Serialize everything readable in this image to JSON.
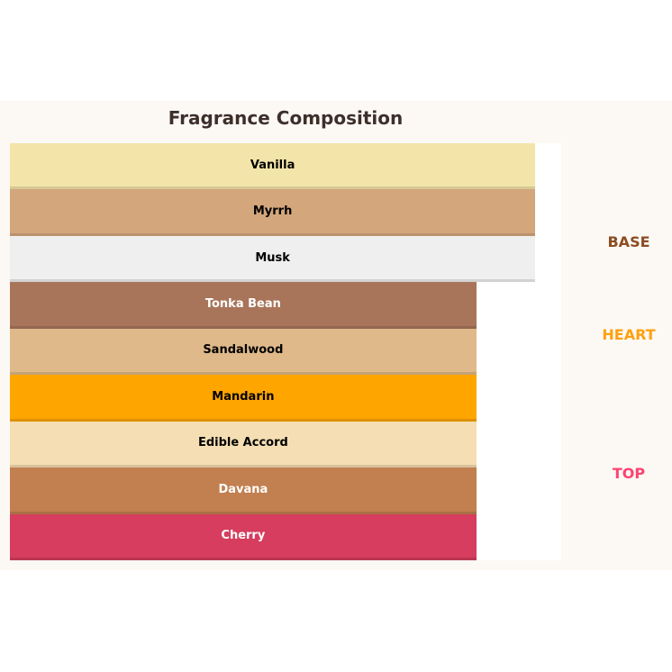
{
  "chart_data": {
    "type": "bar",
    "orientation": "horizontal-stacked-layers",
    "title": "Fragrance Composition",
    "grid": false,
    "axes_visible": false,
    "value_unit": "percent of plot width",
    "bars": [
      {
        "label": "Vanilla",
        "group": "BASE",
        "value": 95.3,
        "color": "#f3e4a9",
        "text_color": "#000000"
      },
      {
        "label": "Myrrh",
        "group": "BASE",
        "value": 95.3,
        "color": "#d3a67b",
        "text_color": "#000000"
      },
      {
        "label": "Musk",
        "group": "BASE",
        "value": 95.3,
        "color": "#efefef",
        "text_color": "#000000"
      },
      {
        "label": "Tonka Bean",
        "group": "HEART",
        "value": 84.6,
        "color": "#a8755a",
        "text_color": "#ffffff"
      },
      {
        "label": "Sandalwood",
        "group": "HEART",
        "value": 84.6,
        "color": "#dfb98a",
        "text_color": "#000000"
      },
      {
        "label": "Mandarin",
        "group": "HEART",
        "value": 84.6,
        "color": "#ffa500",
        "text_color": "#000000"
      },
      {
        "label": "Edible Accord",
        "group": "TOP",
        "value": 84.6,
        "color": "#f5deb3",
        "text_color": "#000000"
      },
      {
        "label": "Davana",
        "group": "TOP",
        "value": 84.6,
        "color": "#c27f4f",
        "text_color": "#ffffff"
      },
      {
        "label": "Cherry",
        "group": "TOP",
        "value": 84.6,
        "color": "#d63d5e",
        "text_color": "#ffffff"
      }
    ],
    "groups": [
      {
        "label": "BASE",
        "color": "#8b4d22"
      },
      {
        "label": "HEART",
        "color": "#ffa010"
      },
      {
        "label": "TOP",
        "color": "#ff4272"
      }
    ]
  }
}
